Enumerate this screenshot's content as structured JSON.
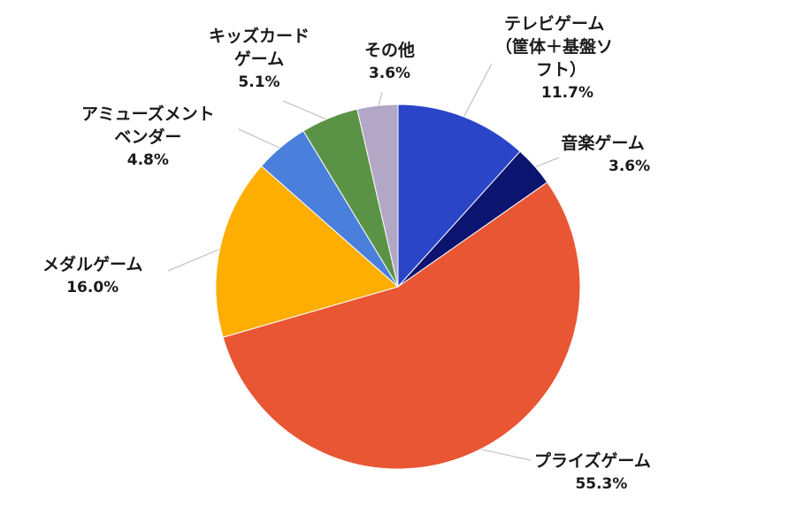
{
  "chart_data": {
    "type": "pie",
    "title": "",
    "start_angle_deg": 0,
    "direction": "clockwise",
    "slices": [
      {
        "label": "テレビゲーム（筐体＋基盤ソフト）",
        "label_lines": [
          "テレビゲーム",
          "（筐体＋基盤ソ",
          "フト）"
        ],
        "value": 11.7,
        "value_label": "11.7%",
        "color": "#2B45C8"
      },
      {
        "label": "音楽ゲーム",
        "label_lines": [
          "音楽ゲーム"
        ],
        "value": 3.6,
        "value_label": "3.6%",
        "color": "#0B1570"
      },
      {
        "label": "プライズゲーム",
        "label_lines": [
          "プライズゲーム"
        ],
        "value": 55.3,
        "value_label": "55.3%",
        "color": "#E85634"
      },
      {
        "label": "メダルゲーム",
        "label_lines": [
          "メダルゲーム"
        ],
        "value": 16.0,
        "value_label": "16.0%",
        "color": "#FDAE00"
      },
      {
        "label": "アミューズメントベンダー",
        "label_lines": [
          "アミューズメント",
          "ベンダー"
        ],
        "value": 4.8,
        "value_label": "4.8%",
        "color": "#4A7FDB"
      },
      {
        "label": "キッズカードゲーム",
        "label_lines": [
          "キッズカード",
          "ゲーム"
        ],
        "value": 5.1,
        "value_label": "5.1%",
        "color": "#5B9346"
      },
      {
        "label": "その他",
        "label_lines": [
          "その他"
        ],
        "value": 3.6,
        "value_label": "3.6%",
        "color": "#B2A7C4"
      }
    ]
  }
}
